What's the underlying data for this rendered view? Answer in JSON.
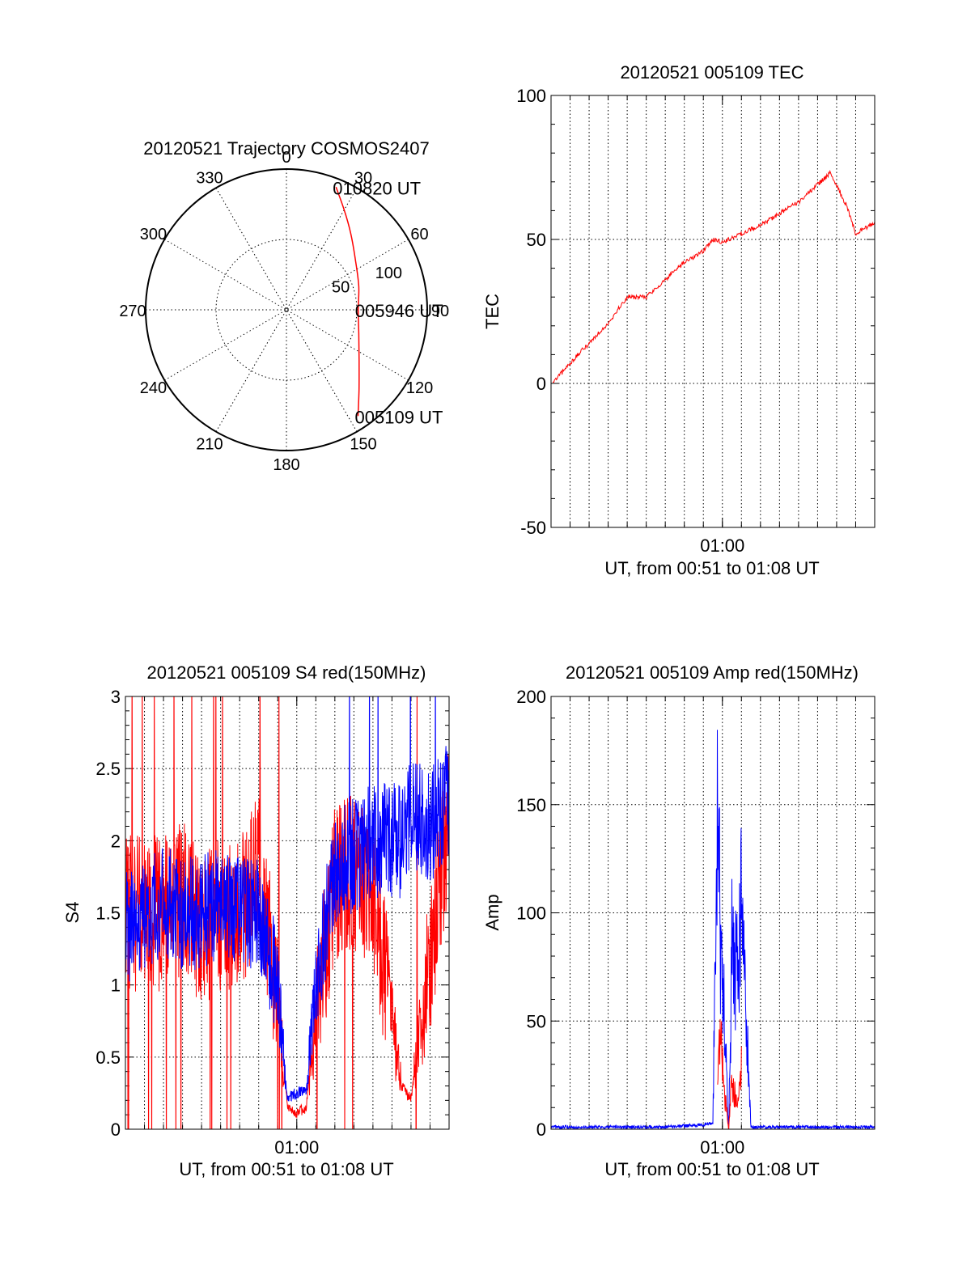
{
  "chart_data": [
    {
      "type": "polar",
      "title": "20120521 Trajectory COSMOS2407",
      "angle_unit": "azimuth degrees, clockwise from north",
      "angle_ticks": [
        0,
        30,
        60,
        90,
        120,
        150,
        180,
        210,
        240,
        270,
        300,
        330
      ],
      "radial_ticks": [
        50,
        100
      ],
      "radial_range": [
        0,
        100
      ],
      "grid": true,
      "series": [
        {
          "color": "#ff0000",
          "points": [
            {
              "az": 22,
              "r": 94
            },
            {
              "az": 30,
              "r": 82
            },
            {
              "az": 40,
              "r": 71
            },
            {
              "az": 55,
              "r": 60
            },
            {
              "az": 72,
              "r": 54
            },
            {
              "az": 90,
              "r": 51
            },
            {
              "az": 108,
              "r": 54
            },
            {
              "az": 125,
              "r": 63
            },
            {
              "az": 138,
              "r": 77
            },
            {
              "az": 146,
              "r": 91
            }
          ]
        }
      ],
      "annotations": [
        {
          "text": "010820 UT",
          "az": 22,
          "r": 94
        },
        {
          "text": "005946 UT",
          "az": 90,
          "r": 51
        },
        {
          "text": "005109 UT",
          "az": 146,
          "r": 91
        }
      ]
    },
    {
      "type": "line",
      "title": "20120521 005109 TEC",
      "xlabel": "UT, from 00:51 to 01:08 UT",
      "ylabel": "TEC",
      "xlim": [
        "00:51",
        "01:08"
      ],
      "ylim": [
        -50,
        100
      ],
      "yticks": [
        -50,
        0,
        50,
        100
      ],
      "xtick_labels": [
        "01:00"
      ],
      "grid": true,
      "series": [
        {
          "color": "#ff0000",
          "x": [
            "00:51:05",
            "00:52:00",
            "00:53:00",
            "00:54:00",
            "00:55:00",
            "00:56:00",
            "00:57:00",
            "00:58:00",
            "00:59:00",
            "00:59:30",
            "01:00:00",
            "01:01:00",
            "01:02:00",
            "01:03:00",
            "01:04:00",
            "01:05:00",
            "01:05:40",
            "01:06:30",
            "01:07:00",
            "01:08:00"
          ],
          "y": [
            0,
            7,
            14,
            21,
            30,
            30,
            36,
            42,
            46,
            50,
            49,
            52,
            55,
            59,
            63,
            69,
            73,
            62,
            52,
            56
          ]
        }
      ]
    },
    {
      "type": "line",
      "title": "20120521 005109 S4 red(150MHz)",
      "xlabel": "UT, from 00:51 to 01:08 UT",
      "ylabel": "S4",
      "xlim": [
        "00:51",
        "01:08"
      ],
      "ylim": [
        0,
        3
      ],
      "yticks": [
        0,
        0.5,
        1,
        1.5,
        2,
        2.5,
        3
      ],
      "xtick_labels": [
        "01:00"
      ],
      "grid": true,
      "series": [
        {
          "color": "#ff0000",
          "x": [
            "00:51",
            "00:52",
            "00:53",
            "00:54",
            "00:55",
            "00:56",
            "00:57",
            "00:58",
            "00:59",
            "00:59:30",
            "01:00",
            "01:00:30",
            "01:01",
            "01:02",
            "01:03",
            "01:04",
            "01:05",
            "01:05:30",
            "01:06",
            "01:07",
            "01:08"
          ],
          "y": [
            1.5,
            1.5,
            1.5,
            1.6,
            1.4,
            1.5,
            1.5,
            1.8,
            0.9,
            0.15,
            0.12,
            0.15,
            0.8,
            1.7,
            1.8,
            1.6,
            0.8,
            0.3,
            0.2,
            1.2,
            2.2
          ]
        },
        {
          "color": "#0000ff",
          "x": [
            "00:51",
            "00:52",
            "00:53",
            "00:54",
            "00:55",
            "00:56",
            "00:57",
            "00:58",
            "00:59",
            "00:59:30",
            "01:00",
            "01:00:30",
            "01:01",
            "01:02",
            "01:03",
            "01:04",
            "01:05",
            "01:05:30",
            "01:06",
            "01:07",
            "01:08"
          ],
          "y": [
            1.4,
            1.5,
            1.6,
            1.5,
            1.5,
            1.6,
            1.5,
            1.5,
            1.0,
            0.22,
            0.25,
            0.28,
            1.0,
            1.8,
            1.9,
            2.0,
            2.0,
            2.0,
            2.2,
            2.1,
            2.3
          ]
        }
      ]
    },
    {
      "type": "line",
      "title": "20120521 005109 Amp red(150MHz)",
      "xlabel": "UT, from 00:51 to 01:08 UT",
      "ylabel": "Amp",
      "xlim": [
        "00:51",
        "01:08"
      ],
      "ylim": [
        0,
        200
      ],
      "yticks": [
        0,
        50,
        100,
        150,
        200
      ],
      "xtick_labels": [
        "01:00"
      ],
      "grid": true,
      "series": [
        {
          "color": "#0000ff",
          "x": [
            "00:51",
            "00:53",
            "00:55",
            "00:57",
            "00:59",
            "00:59:30",
            "00:59:45",
            "00:59:55",
            "01:00:05",
            "01:00:20",
            "01:00:30",
            "01:00:45",
            "01:01",
            "01:01:30",
            "01:03",
            "01:05",
            "01:08"
          ],
          "y": [
            1,
            1,
            1,
            1,
            2,
            3,
            170,
            80,
            60,
            0,
            90,
            75,
            110,
            1,
            1,
            1,
            1
          ]
        },
        {
          "color": "#ff0000",
          "x": [
            "00:59:45",
            "00:59:55",
            "01:00:05",
            "01:00:20",
            "01:00:30",
            "01:00:45",
            "01:01"
          ],
          "y": [
            35,
            45,
            20,
            0,
            25,
            12,
            30
          ]
        }
      ]
    }
  ]
}
